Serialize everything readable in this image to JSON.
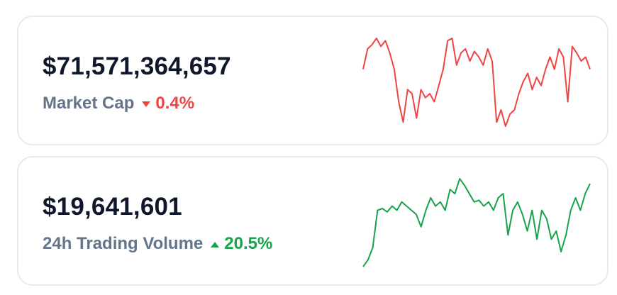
{
  "cards": [
    {
      "value": "$71,571,364,657",
      "label": "Market Cap",
      "change": "0.4%",
      "direction": "down",
      "color": "#ef4444",
      "sparkline": [
        80,
        105,
        110,
        118,
        108,
        115,
        100,
        80,
        40,
        15,
        55,
        50,
        20,
        55,
        45,
        50,
        40,
        60,
        80,
        115,
        118,
        85,
        100,
        105,
        90,
        102,
        95,
        85,
        105,
        90,
        15,
        30,
        10,
        25,
        30,
        50,
        65,
        75,
        55,
        70,
        60,
        80,
        95,
        80,
        105,
        95,
        40,
        108,
        100,
        90,
        95,
        80
      ]
    },
    {
      "value": "$19,641,601",
      "label": "24h Trading Volume",
      "change": "20.5%",
      "direction": "up",
      "color": "#16a34a",
      "sparkline": [
        12,
        20,
        35,
        80,
        82,
        78,
        85,
        80,
        90,
        85,
        80,
        75,
        60,
        80,
        95,
        85,
        90,
        80,
        105,
        100,
        118,
        110,
        100,
        90,
        92,
        85,
        90,
        80,
        95,
        100,
        50,
        80,
        90,
        75,
        55,
        80,
        45,
        80,
        70,
        45,
        55,
        30,
        50,
        80,
        95,
        80,
        100,
        112
      ]
    }
  ]
}
